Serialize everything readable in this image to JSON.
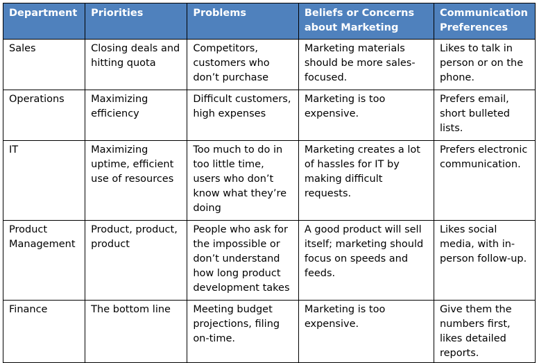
{
  "table": {
    "headers": [
      "Department",
      "Priorities",
      "Problems",
      "Beliefs or Concerns about Marketing",
      "Communication Preferences"
    ],
    "rows": [
      {
        "department": "Sales",
        "priorities": "Closing deals and hitting quota",
        "problems": "Competitors, customers who don’t purchase",
        "beliefs": "Marketing materials should be more sales-focused.",
        "communication": "Likes to talk in person or on the phone."
      },
      {
        "department": "Operations",
        "priorities": "Maximizing efficiency",
        "problems": "Difficult customers, high expenses",
        "beliefs": "Marketing is too expensive.",
        "communication": "Prefers email, short bulleted lists."
      },
      {
        "department": "IT",
        "priorities": "Maximizing uptime, efficient use of resources",
        "problems": "Too much to do in too little time, users who don’t know what they’re doing",
        "beliefs": "Marketing creates a lot of hassles for IT by making difficult requests.",
        "communication": "Prefers electronic communication."
      },
      {
        "department": "Product Management",
        "priorities": "Product, product, product",
        "problems": "People who ask for the impossible or don’t understand how long product development takes",
        "beliefs": "A good product will sell itself; marketing should focus on speeds and feeds.",
        "communication": "Likes social media, with in-person follow-up."
      },
      {
        "department": "Finance",
        "priorities": "The bottom line",
        "problems": "Meeting budget projections, filing on-time.",
        "beliefs": "Marketing is too expensive.",
        "communication": "Give them the numbers first, likes detailed reports."
      }
    ]
  }
}
